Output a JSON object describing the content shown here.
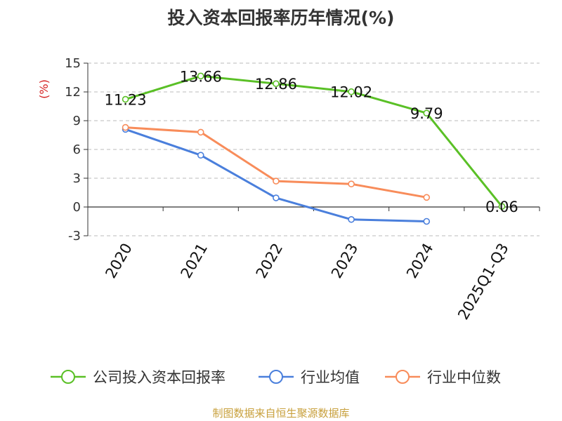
{
  "chart_data": {
    "type": "line",
    "title": "投入资本回报率历年情况(%)",
    "ylabel": "(%)",
    "xlabel": "",
    "categories": [
      "2020",
      "2021",
      "2022",
      "2023",
      "2024",
      "2025Q1-Q3"
    ],
    "ylim": [
      -3,
      15
    ],
    "yticks": [
      -3,
      0,
      3,
      6,
      9,
      12,
      15
    ],
    "grid": true,
    "legend_position": "bottom",
    "series": [
      {
        "name": "公司投入资本回报率",
        "color": "#5ac026",
        "values": [
          11.23,
          13.66,
          12.86,
          12.02,
          9.79,
          0.06
        ],
        "data_labels": [
          "11.23",
          "13.66",
          "12.86",
          "12.02",
          "9.79",
          "0.06"
        ]
      },
      {
        "name": "行业均值",
        "color": "#4a7fdc",
        "values": [
          8.1,
          5.4,
          0.95,
          -1.3,
          -1.5,
          null
        ]
      },
      {
        "name": "行业中位数",
        "color": "#f88c5a",
        "values": [
          8.3,
          7.8,
          2.7,
          2.4,
          1.0,
          null
        ]
      }
    ]
  },
  "source": "制图数据来自恒生聚源数据库"
}
